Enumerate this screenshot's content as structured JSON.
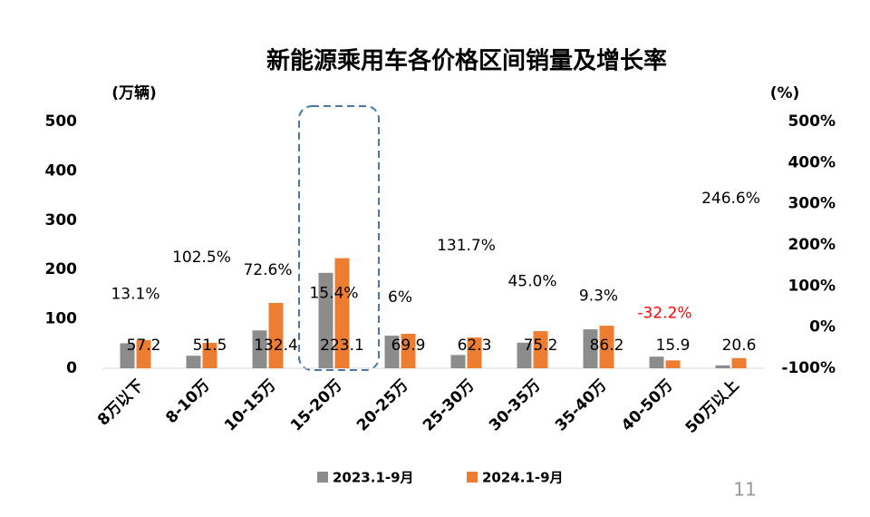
{
  "chart_data": {
    "type": "bar",
    "title": "新能源乘用车各价格区间销量及增长率",
    "y_label": "(万辆)",
    "y2_label": "(%)",
    "categories": [
      "8万以下",
      "8-10万",
      "10-15万",
      "15-20万",
      "20-25万",
      "25-30万",
      "30-35万",
      "35-40万",
      "40-50万",
      "50万以上"
    ],
    "series": [
      {
        "name": "2023.1-9月",
        "color": "#8c8c8c",
        "values": [
          50.6,
          25.4,
          76.7,
          193.3,
          66,
          26.9,
          51.9,
          78.9,
          23.5,
          5.9
        ]
      },
      {
        "name": "2024.1-9月",
        "color": "#ed7d31",
        "values": [
          57.2,
          51.5,
          132.4,
          223.1,
          69.9,
          62.3,
          75.2,
          86.2,
          15.9,
          20.6
        ]
      }
    ],
    "growth": {
      "axis": "y2",
      "color": "#000000",
      "negative_color": "#ff0000",
      "values": [
        13.1,
        102.5,
        72.6,
        15.4,
        6,
        131.7,
        45.0,
        9.3,
        -32.2,
        246.6
      ],
      "value_labels": [
        "13.1%",
        "102.5%",
        "72.6%",
        "15.4%",
        "6%",
        "131.7%",
        "45.0%",
        "9.3%",
        "-32.2%",
        "246.6%"
      ]
    },
    "ylim": [
      0,
      500
    ],
    "yticks": [
      0,
      100,
      200,
      300,
      400,
      500
    ],
    "y2lim": [
      -100,
      500
    ],
    "y2ticks": [
      {
        "value": -100,
        "label": "-100%"
      },
      {
        "value": 0,
        "label": "0%"
      },
      {
        "value": 100,
        "label": "100%"
      },
      {
        "value": 200,
        "label": "200%"
      },
      {
        "value": 300,
        "label": "300%"
      },
      {
        "value": 400,
        "label": "400%"
      },
      {
        "value": 500,
        "label": "500%"
      }
    ],
    "page_number": "11",
    "grid": false
  }
}
